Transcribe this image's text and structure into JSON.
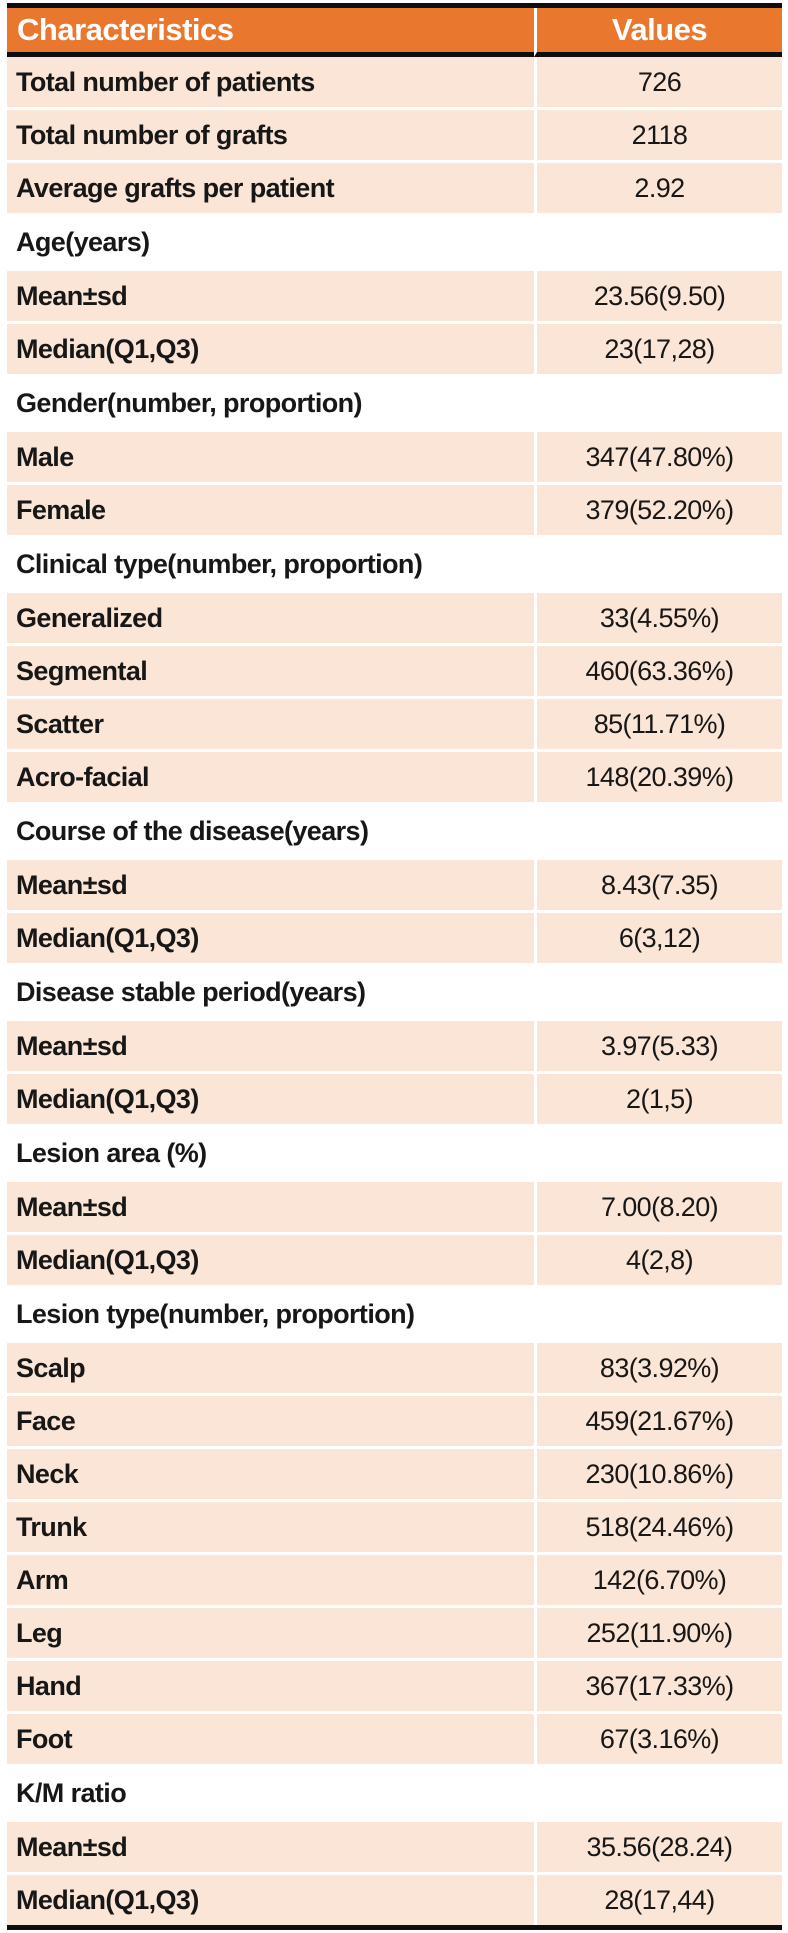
{
  "colors": {
    "header_bg": "#E9772E",
    "header_text": "#FFFFFF",
    "row_bg": "#FBE5D7",
    "section_bg": "#FFFFFF",
    "body_text": "#171717",
    "frame_border": "#0E0E0E",
    "grid_line": "#FFFFFF"
  },
  "chart_data": {
    "type": "table",
    "columns": [
      "Characteristics",
      "Values"
    ],
    "rows": [
      {
        "kind": "data",
        "label": "Total number of patients",
        "value": "726"
      },
      {
        "kind": "data",
        "label": "Total number of grafts",
        "value": "2118"
      },
      {
        "kind": "data",
        "label": "Average grafts per patient",
        "value": "2.92"
      },
      {
        "kind": "section",
        "label": "Age(years)",
        "value": ""
      },
      {
        "kind": "data",
        "label": "Mean±sd",
        "value": "23.56(9.50)"
      },
      {
        "kind": "data",
        "label": "Median(Q1,Q3)",
        "value": "23(17,28)"
      },
      {
        "kind": "section",
        "label": "Gender(number, proportion)",
        "value": ""
      },
      {
        "kind": "data",
        "label": "Male",
        "value": "347(47.80%)"
      },
      {
        "kind": "data",
        "label": "Female",
        "value": "379(52.20%)"
      },
      {
        "kind": "section",
        "label": "Clinical type(number, proportion)",
        "value": ""
      },
      {
        "kind": "data",
        "label": "Generalized",
        "value": "33(4.55%)"
      },
      {
        "kind": "data",
        "label": "Segmental",
        "value": "460(63.36%)"
      },
      {
        "kind": "data",
        "label": "Scatter",
        "value": "85(11.71%)"
      },
      {
        "kind": "data",
        "label": "Acro-facial",
        "value": "148(20.39%)"
      },
      {
        "kind": "section",
        "label": "Course of the disease(years)",
        "value": ""
      },
      {
        "kind": "data",
        "label": "Mean±sd",
        "value": "8.43(7.35)"
      },
      {
        "kind": "data",
        "label": "Median(Q1,Q3)",
        "value": "6(3,12)"
      },
      {
        "kind": "section",
        "label": "Disease stable period(years)",
        "value": ""
      },
      {
        "kind": "data",
        "label": "Mean±sd",
        "value": "3.97(5.33)"
      },
      {
        "kind": "data",
        "label": "Median(Q1,Q3)",
        "value": "2(1,5)"
      },
      {
        "kind": "section",
        "label": "Lesion area (%)",
        "value": ""
      },
      {
        "kind": "data",
        "label": "Mean±sd",
        "value": "7.00(8.20)"
      },
      {
        "kind": "data",
        "label": "Median(Q1,Q3)",
        "value": "4(2,8)"
      },
      {
        "kind": "section",
        "label": "Lesion type(number, proportion)",
        "value": ""
      },
      {
        "kind": "data",
        "label": "Scalp",
        "value": "83(3.92%)"
      },
      {
        "kind": "data",
        "label": "Face",
        "value": "459(21.67%)"
      },
      {
        "kind": "data",
        "label": "Neck",
        "value": "230(10.86%)"
      },
      {
        "kind": "data",
        "label": "Trunk",
        "value": "518(24.46%)"
      },
      {
        "kind": "data",
        "label": "Arm",
        "value": "142(6.70%)"
      },
      {
        "kind": "data",
        "label": "Leg",
        "value": "252(11.90%)"
      },
      {
        "kind": "data",
        "label": "Hand",
        "value": "367(17.33%)"
      },
      {
        "kind": "data",
        "label": "Foot",
        "value": "67(3.16%)"
      },
      {
        "kind": "section",
        "label": "K/M ratio",
        "value": ""
      },
      {
        "kind": "data",
        "label": "Mean±sd",
        "value": "35.56(28.24)"
      },
      {
        "kind": "data",
        "label": "Median(Q1,Q3)",
        "value": "28(17,44)"
      }
    ]
  }
}
